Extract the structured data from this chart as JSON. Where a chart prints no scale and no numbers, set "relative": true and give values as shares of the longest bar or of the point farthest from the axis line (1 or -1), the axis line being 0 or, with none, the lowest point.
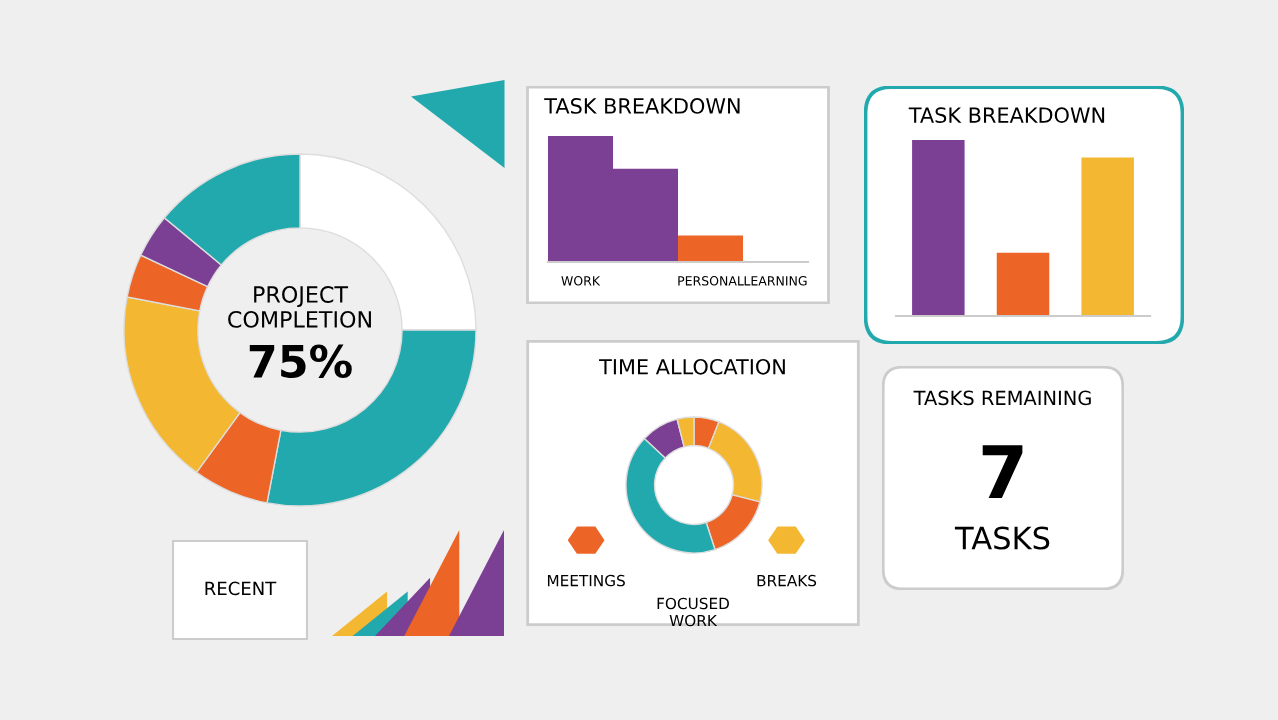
{
  "chart_data": [
    {
      "type": "donut",
      "categories": [
        null,
        null,
        null,
        null,
        null,
        null,
        null
      ],
      "values": [
        25,
        28,
        7,
        18,
        4,
        4,
        14
      ],
      "colors": [
        "#ffffff",
        "#22a9ae",
        "#ec6526",
        "#f4b731",
        "#ec6526",
        "#7b3f94",
        "#22a9ae"
      ],
      "annotations": [
        "PROJECT COMPLETION",
        "75%"
      ]
    },
    {
      "type": "other",
      "title": "RECENT"
    },
    {
      "type": "bar",
      "relative": true,
      "title": "TASK BREAKDOWN",
      "categories": [
        "WORK",
        null,
        "PERSONAL",
        "LEARNING"
      ],
      "values": [
        1,
        0.74,
        0.21,
        0
      ],
      "colors": [
        "#7b3f94",
        "#7b3f94",
        "#ec6526",
        "#ec6526"
      ]
    },
    {
      "type": "bar",
      "relative": true,
      "title": "TASK BREAKDOWN",
      "categories": [
        null,
        null,
        null
      ],
      "values": [
        1,
        0.36,
        0.9
      ],
      "colors": [
        "#7b3f94",
        "#ec6526",
        "#f4b731"
      ]
    },
    {
      "type": "donut",
      "title": "TIME ALLOCATION",
      "categories": [
        null,
        null,
        null,
        null,
        null,
        null
      ],
      "values": [
        6,
        23,
        16,
        42,
        9,
        4
      ],
      "colors": [
        "#ec6526",
        "#f4b731",
        "#ec6526",
        "#22a9ae",
        "#7b3f94",
        "#f4b731"
      ],
      "annotations": [
        "MEETINGS",
        "FOCUSED\nWORK",
        "BREAKS"
      ]
    },
    {
      "type": "other",
      "title": "TASKS REMAINING",
      "annotations": [
        "7",
        "TASKS"
      ]
    }
  ]
}
